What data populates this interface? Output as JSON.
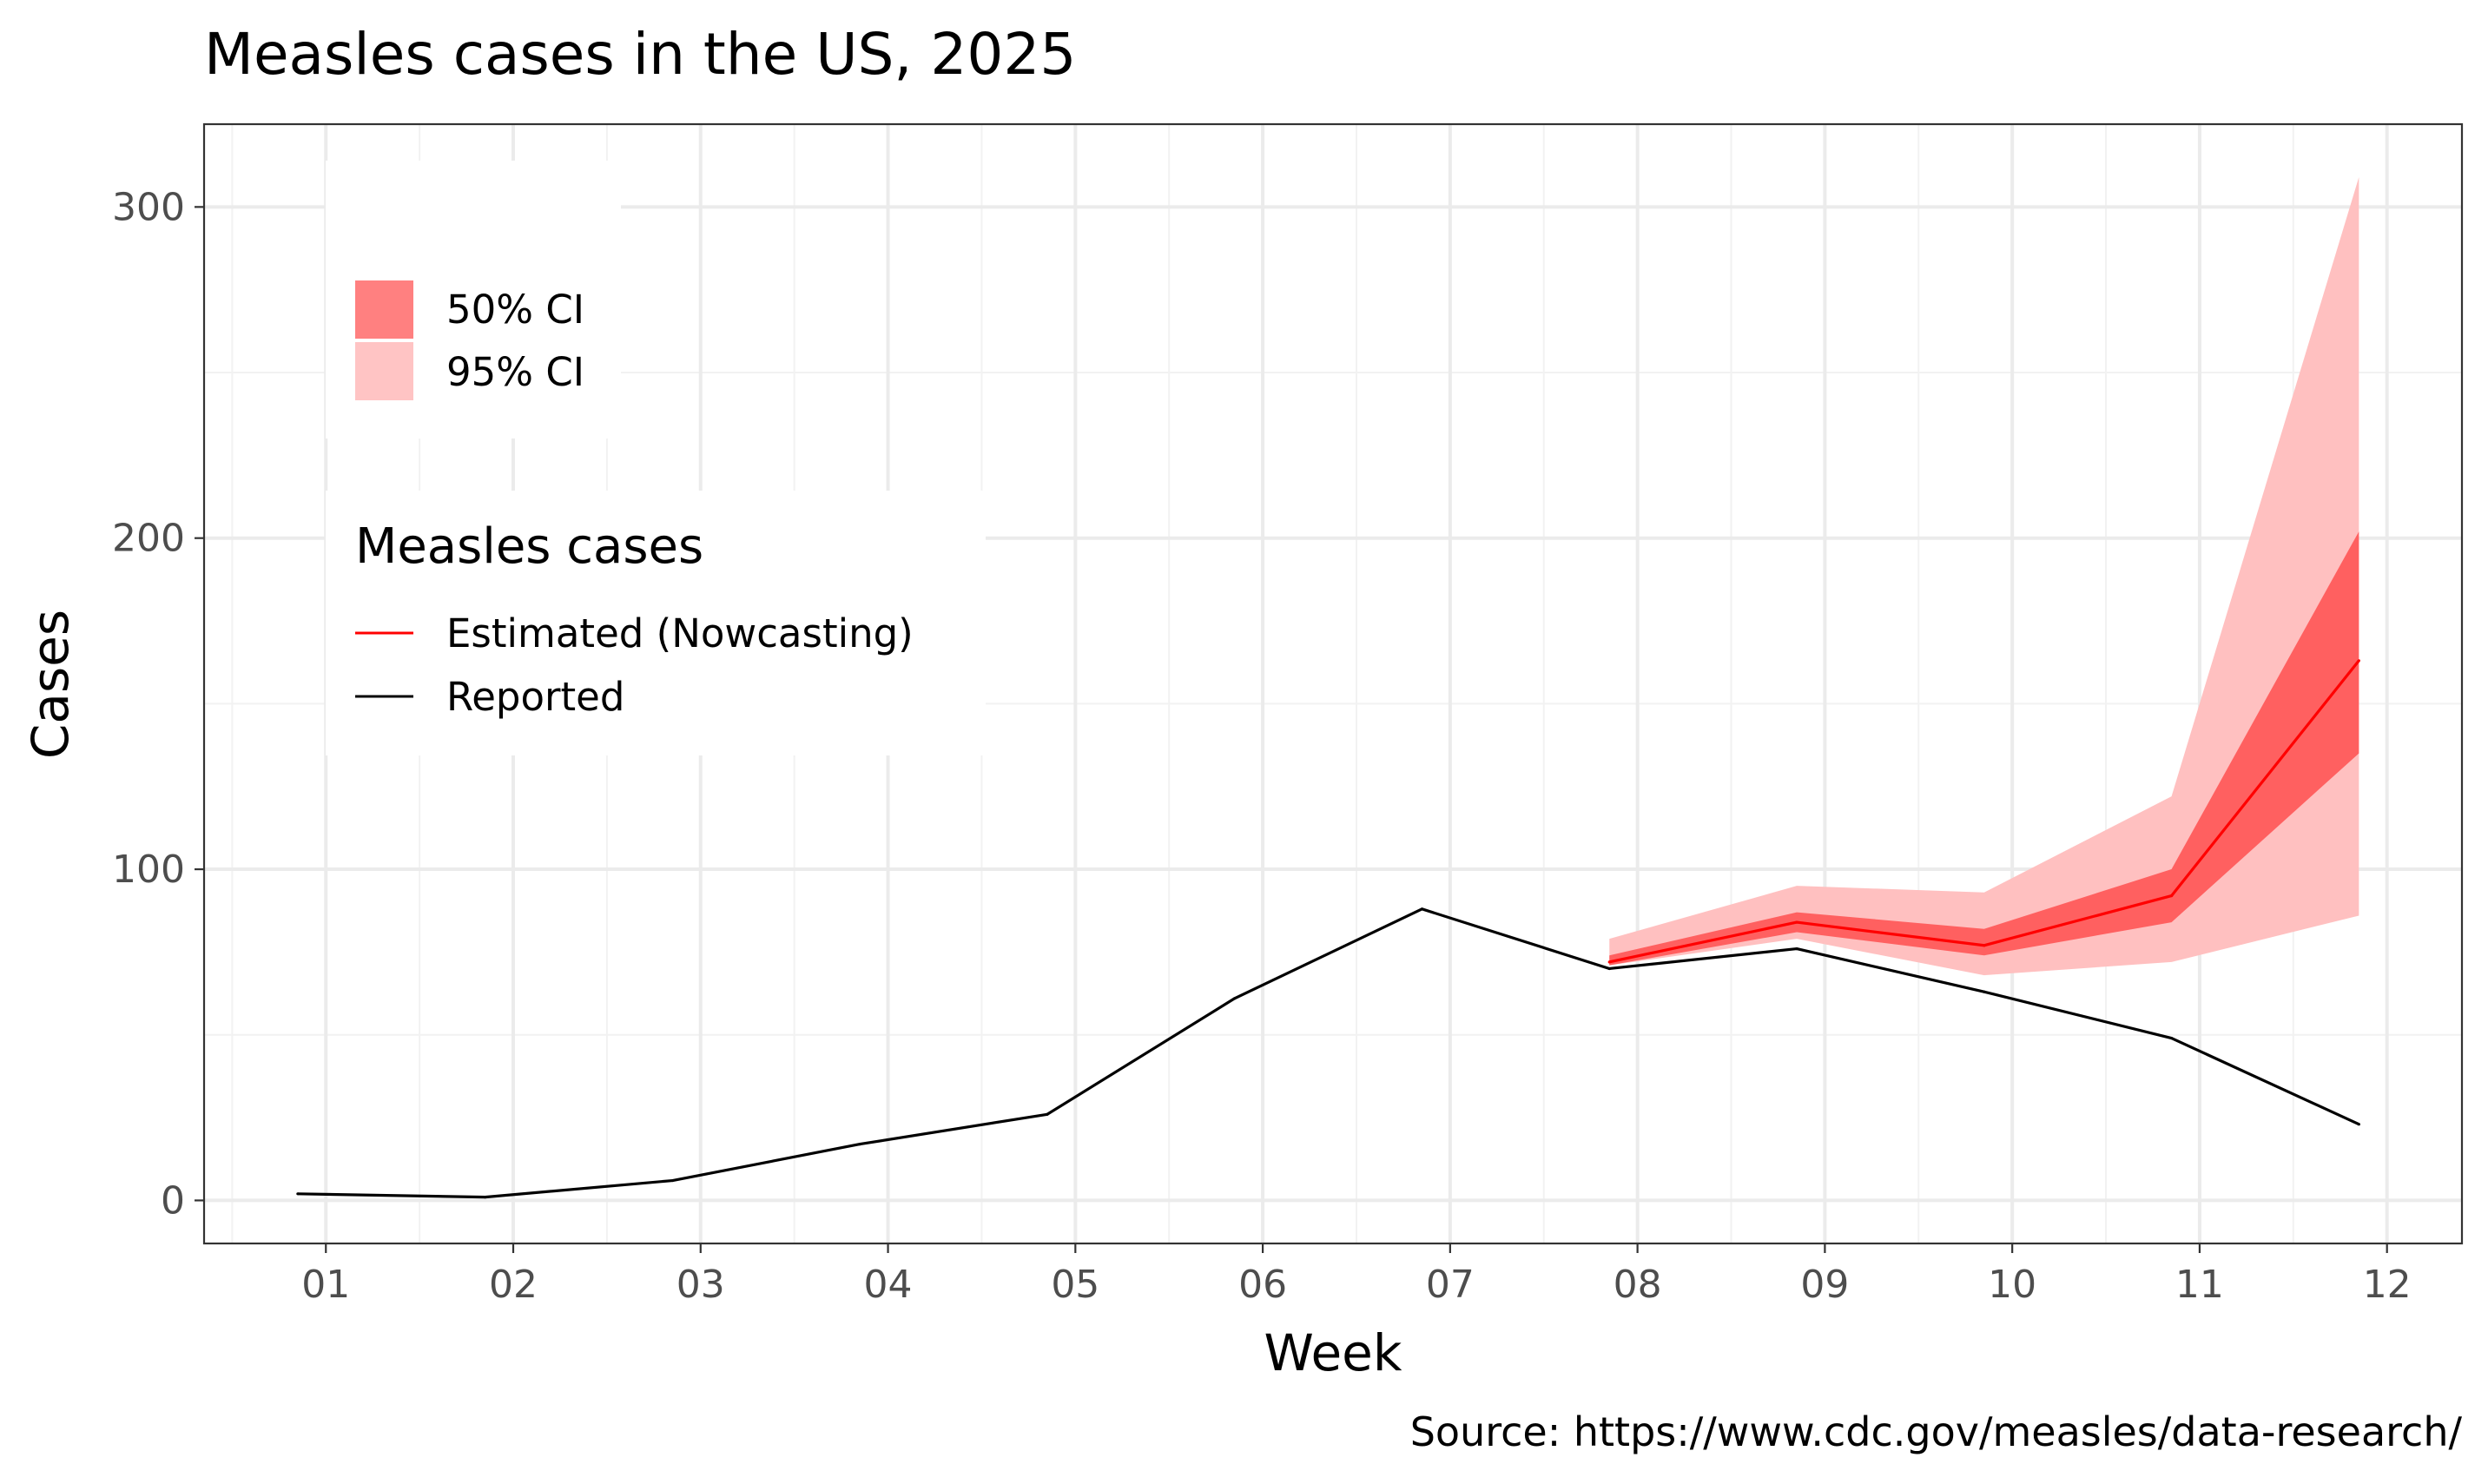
{
  "chart_data": {
    "type": "line",
    "title": "Measles cases in the US, 2025",
    "xlabel": "Week",
    "ylabel": "Cases",
    "caption": "Source: https://www.cdc.gov/measles/data-research/",
    "x_ticks": [
      "01",
      "02",
      "03",
      "04",
      "05",
      "06",
      "07",
      "08",
      "09",
      "10",
      "11",
      "12"
    ],
    "y_ticks": [
      0,
      100,
      200,
      300
    ],
    "xlim": [
      0.35,
      12.4
    ],
    "ylim": [
      -13,
      325
    ],
    "grid": true,
    "series": [
      {
        "name": "Reported",
        "color": "#000000",
        "x": [
          0.85,
          1.85,
          2.85,
          3.85,
          4.85,
          5.85,
          6.85,
          7.85,
          8.85,
          9.85,
          10.85,
          11.85
        ],
        "values": [
          2,
          1,
          6,
          17,
          26,
          61,
          88,
          70,
          76,
          63,
          49,
          23
        ]
      },
      {
        "name": "Estimated (Nowcasting)",
        "color": "#ff0000",
        "x": [
          7.85,
          8.85,
          9.85,
          10.85,
          11.85
        ],
        "values": [
          72,
          84,
          77,
          92,
          163
        ]
      }
    ],
    "bands": [
      {
        "name": "95% CI",
        "color": "#ffc0c0",
        "x": [
          7.85,
          8.85,
          9.85,
          10.85,
          11.85
        ],
        "lower": [
          71,
          79,
          68,
          72,
          86
        ],
        "upper": [
          79,
          95,
          93,
          122,
          309
        ]
      },
      {
        "name": "50% CI",
        "color": "#ff6060",
        "x": [
          7.85,
          8.85,
          9.85,
          10.85,
          11.85
        ],
        "lower": [
          71,
          81,
          74,
          84,
          135
        ],
        "upper": [
          74,
          87,
          82,
          100,
          202
        ]
      }
    ],
    "legend": {
      "placement": "top-left",
      "ci_items": [
        {
          "label": "50% CI",
          "color": "#ff8080"
        },
        {
          "label": "95% CI",
          "color": "#ffc4c4"
        }
      ],
      "cases_title": "Measles cases",
      "cases_items": [
        {
          "label": "Estimated (Nowcasting)",
          "color": "#ff0000"
        },
        {
          "label": "Reported",
          "color": "#000000"
        }
      ]
    }
  }
}
